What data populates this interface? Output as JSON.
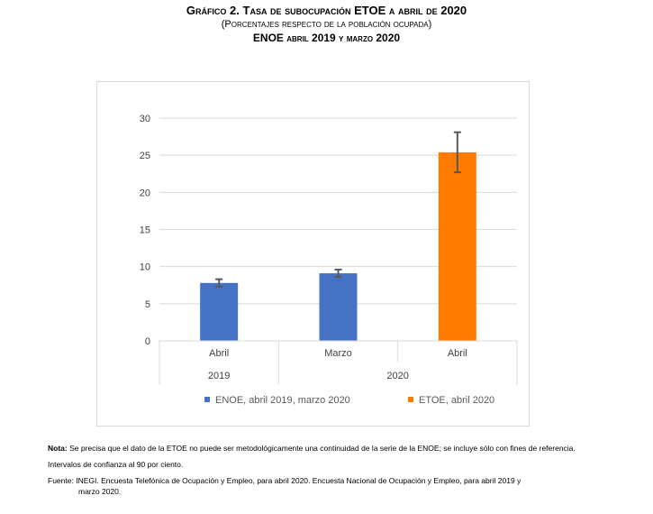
{
  "header": {
    "title": "Gráfico 2. Tasa de subocupación ETOE a abril de 2020",
    "subtitle": "(Porcentajes respecto de la población ocupada)",
    "subtitle2": "ENOE abril 2019 y marzo 2020"
  },
  "chart_data": {
    "type": "bar",
    "categories": [
      "Abril",
      "Marzo",
      "Abril"
    ],
    "category_years": [
      "2019",
      "2020",
      "2020"
    ],
    "year_groups": [
      {
        "label": "2019",
        "span": [
          0,
          0
        ]
      },
      {
        "label": "2020",
        "span": [
          1,
          2
        ]
      }
    ],
    "values": [
      7.8,
      9.1,
      25.4
    ],
    "error_low": [
      7.3,
      8.6,
      22.7
    ],
    "error_high": [
      8.3,
      9.6,
      28.1
    ],
    "bar_series": [
      0,
      0,
      1
    ],
    "series": [
      {
        "name": "ENOE, abril 2019, marzo 2020",
        "color": "#4472C4"
      },
      {
        "name": "ETOE, abril 2020",
        "color": "#FF7C00"
      }
    ],
    "ylim": [
      0,
      30
    ],
    "yticks": [
      0,
      5,
      10,
      15,
      20,
      25,
      30
    ],
    "grid": true,
    "legend_position": "bottom"
  },
  "notes": {
    "nota_label": "Nota:",
    "nota_text": "Se precisa que el dato de la ETOE no puede ser metodológicamente una continuidad de la serie de la ENOE; se incluye sólo con fines de referencia.",
    "intervals": "Intervalos de confianza al 90 por ciento.",
    "fuente_label": "Fuente:",
    "fuente_text": "INEGI. Encuesta Telefónica de Ocupación y Empleo, para abril 2020. Encuesta Nacional de Ocupación y Empleo, para abril 2019 y",
    "fuente_text2": "marzo 2020."
  },
  "colors": {
    "grid": "#D9D9D9",
    "error_bar": "#595959",
    "frame": "#D9D9D9",
    "axis_text": "#404040"
  }
}
